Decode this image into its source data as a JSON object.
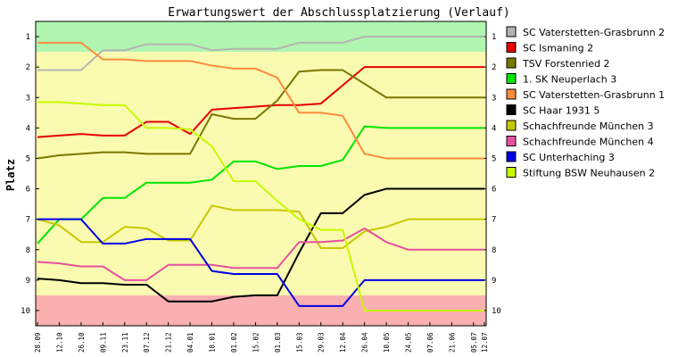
{
  "chart_data": {
    "type": "line",
    "title": "Erwartungswert der Abschlussplatzierung (Verlauf)",
    "ylabel": "Platz",
    "xlabel": "",
    "ylim": [
      1,
      10
    ],
    "y_inverted": true,
    "y_ticks": [
      "1",
      "2",
      "3",
      "4",
      "5",
      "6",
      "7",
      "8",
      "9",
      "10"
    ],
    "categories": [
      "28.09",
      "12.10",
      "26.10",
      "09.11",
      "23.11",
      "07.12",
      "21.12",
      "04.01",
      "18.01",
      "01.02",
      "15.02",
      "01.03",
      "15.03",
      "29.03",
      "12.04",
      "26.04",
      "10.05",
      "24.05",
      "07.06",
      "21.06",
      "05.07",
      "12.07"
    ],
    "x_index": [
      0,
      2,
      4,
      6,
      8,
      10,
      12,
      14,
      16,
      18,
      20,
      22,
      24,
      26,
      28,
      30,
      32,
      34,
      36,
      38,
      40,
      41
    ],
    "bands": [
      {
        "from": 0.5,
        "to": 1.5,
        "color": "#b0f5b0"
      },
      {
        "from": 1.5,
        "to": 9.5,
        "color": "#fafab0"
      },
      {
        "from": 9.5,
        "to": 10.5,
        "color": "#fab0b0"
      }
    ],
    "legend_position": "right",
    "grid": false,
    "series": [
      {
        "name": "SC Vaterstetten-Grasbrunn 2",
        "color": "#b4b4b4",
        "values": [
          2.1,
          2.1,
          2.1,
          1.45,
          1.45,
          1.25,
          1.25,
          1.25,
          1.45,
          1.4,
          1.4,
          1.4,
          1.2,
          1.2,
          1.2,
          1.0,
          1.0,
          1.0,
          1.0,
          1.0,
          1.0,
          1.0
        ]
      },
      {
        "name": "SC Ismaning 2",
        "color": "#e60000",
        "values": [
          4.3,
          4.25,
          4.2,
          4.25,
          4.25,
          3.8,
          3.8,
          4.2,
          3.4,
          3.35,
          3.3,
          3.25,
          3.25,
          3.2,
          2.6,
          2.0,
          2.0,
          2.0,
          2.0,
          2.0,
          2.0,
          2.0
        ]
      },
      {
        "name": "TSV Forstenried 2",
        "color": "#787800",
        "values": [
          5.0,
          4.9,
          4.85,
          4.8,
          4.8,
          4.85,
          4.85,
          4.85,
          3.55,
          3.7,
          3.7,
          3.1,
          2.15,
          2.1,
          2.1,
          2.55,
          3.0,
          3.0,
          3.0,
          3.0,
          3.0,
          3.0
        ]
      },
      {
        "name": "1. SK Neuperlach 3",
        "color": "#00e600",
        "values": [
          7.8,
          7.0,
          7.0,
          6.3,
          6.3,
          5.8,
          5.8,
          5.8,
          5.7,
          5.1,
          5.1,
          5.35,
          5.25,
          5.25,
          5.05,
          3.95,
          4.0,
          4.0,
          4.0,
          4.0,
          4.0,
          4.0
        ]
      },
      {
        "name": "SC Vaterstetten-Grasbrunn 1",
        "color": "#fa8c3c",
        "values": [
          1.2,
          1.2,
          1.2,
          1.75,
          1.75,
          1.8,
          1.8,
          1.8,
          1.95,
          2.05,
          2.05,
          2.35,
          3.5,
          3.5,
          3.6,
          4.85,
          5.0,
          5.0,
          5.0,
          5.0,
          5.0,
          5.0
        ]
      },
      {
        "name": "SC Haar 1931 5",
        "color": "#000000",
        "values": [
          8.95,
          9.0,
          9.1,
          9.1,
          9.15,
          9.15,
          9.7,
          9.7,
          9.7,
          9.55,
          9.5,
          9.5,
          8.1,
          6.8,
          6.8,
          6.2,
          6.0,
          6.0,
          6.0,
          6.0,
          6.0,
          6.0
        ]
      },
      {
        "name": "Schachfreunde München 3",
        "color": "#c8c800",
        "values": [
          7.0,
          7.2,
          7.75,
          7.75,
          7.25,
          7.3,
          7.7,
          7.7,
          6.55,
          6.7,
          6.7,
          6.7,
          6.75,
          7.95,
          7.95,
          7.4,
          7.25,
          7.0,
          7.0,
          7.0,
          7.0,
          7.0
        ]
      },
      {
        "name": "Schachfreunde München 4",
        "color": "#e650a0",
        "values": [
          8.4,
          8.45,
          8.55,
          8.55,
          9.0,
          9.0,
          8.5,
          8.5,
          8.5,
          8.6,
          8.6,
          8.6,
          7.75,
          7.75,
          7.7,
          7.3,
          7.75,
          8.0,
          8.0,
          8.0,
          8.0,
          8.0
        ]
      },
      {
        "name": "SC Unterhaching 3",
        "color": "#0000e6",
        "values": [
          7.0,
          7.0,
          7.0,
          7.8,
          7.8,
          7.65,
          7.65,
          7.65,
          8.7,
          8.8,
          8.8,
          8.8,
          9.85,
          9.85,
          9.85,
          9.0,
          9.0,
          9.0,
          9.0,
          9.0,
          9.0,
          9.0
        ]
      },
      {
        "name": "Stiftung BSW Neuhausen 2",
        "color": "#c8fa00",
        "values": [
          3.15,
          3.15,
          3.2,
          3.25,
          3.25,
          4.0,
          4.0,
          4.05,
          4.6,
          5.75,
          5.75,
          6.4,
          7.0,
          7.35,
          7.35,
          10.0,
          10.0,
          10.0,
          10.0,
          10.0,
          10.0,
          10.0
        ]
      }
    ]
  }
}
